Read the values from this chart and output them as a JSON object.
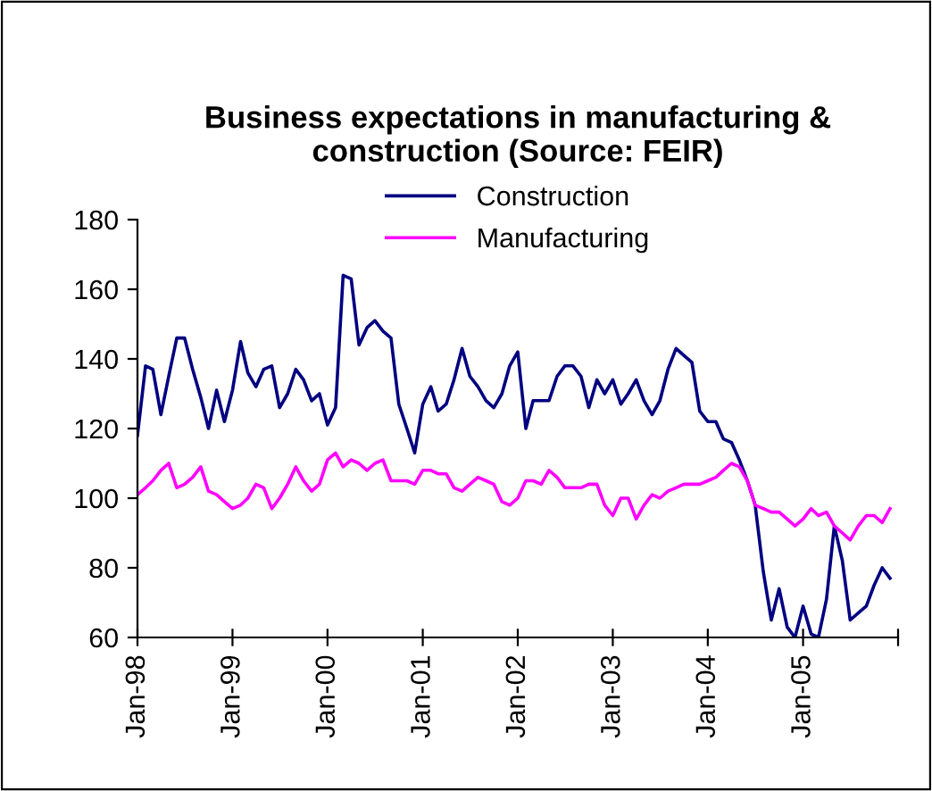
{
  "chart_data": {
    "type": "line",
    "title": "Business expectations in manufacturing &\nconstruction (Source: FEIR)",
    "x": [
      "1998-01",
      "1998-02",
      "1998-03",
      "1998-04",
      "1998-05",
      "1998-06",
      "1998-07",
      "1998-08",
      "1998-09",
      "1998-10",
      "1998-11",
      "1998-12",
      "1999-01",
      "1999-02",
      "1999-03",
      "1999-04",
      "1999-05",
      "1999-06",
      "1999-07",
      "1999-08",
      "1999-09",
      "1999-10",
      "1999-11",
      "1999-12",
      "2000-01",
      "2000-02",
      "2000-03",
      "2000-04",
      "2000-05",
      "2000-06",
      "2000-07",
      "2000-08",
      "2000-09",
      "2000-10",
      "2000-11",
      "2000-12",
      "2001-01",
      "2001-02",
      "2001-03",
      "2001-04",
      "2001-05",
      "2001-06",
      "2001-07",
      "2001-08",
      "2001-09",
      "2001-10",
      "2001-11",
      "2001-12",
      "2002-01",
      "2002-02",
      "2002-03",
      "2002-04",
      "2002-05",
      "2002-06",
      "2002-07",
      "2002-08",
      "2002-09",
      "2002-10",
      "2002-11",
      "2002-12",
      "2003-01",
      "2003-02",
      "2003-03",
      "2003-04",
      "2003-05",
      "2003-06",
      "2003-07",
      "2003-08",
      "2003-09",
      "2003-10",
      "2003-11",
      "2003-12",
      "2004-01",
      "2004-02",
      "2004-03",
      "2004-04",
      "2004-05",
      "2004-06",
      "2004-07",
      "2004-08",
      "2004-09",
      "2004-10",
      "2004-11",
      "2004-12",
      "2005-01",
      "2005-02",
      "2005-03",
      "2005-04",
      "2005-05",
      "2005-06",
      "2005-07",
      "2005-08",
      "2005-09",
      "2005-10",
      "2005-11",
      "2005-12"
    ],
    "series": [
      {
        "name": "Construction",
        "color": "#000080",
        "values": [
          118,
          138,
          137,
          124,
          135,
          146,
          146,
          137,
          129,
          120,
          131,
          122,
          131,
          145,
          136,
          132,
          137,
          138,
          126,
          130,
          137,
          134,
          128,
          130,
          121,
          126,
          164,
          163,
          144,
          149,
          151,
          148,
          146,
          127,
          120,
          113,
          127,
          132,
          125,
          127,
          134,
          143,
          135,
          132,
          128,
          126,
          130,
          138,
          142,
          120,
          128,
          128,
          128,
          135,
          138,
          138,
          135,
          126,
          134,
          130,
          134,
          127,
          130,
          134,
          128,
          124,
          128,
          137,
          143,
          141,
          139,
          125,
          122,
          122,
          117,
          116,
          111,
          105,
          98,
          79,
          65,
          74,
          63,
          60,
          69,
          61,
          60,
          71,
          92,
          82,
          65,
          67,
          69,
          75,
          80,
          77
        ]
      },
      {
        "name": "Manufacturing",
        "color": "#ff00ff",
        "values": [
          101,
          103,
          105,
          108,
          110,
          103,
          104,
          106,
          109,
          102,
          101,
          99,
          97,
          98,
          100,
          104,
          103,
          97,
          100,
          104,
          109,
          105,
          102,
          104,
          111,
          113,
          109,
          111,
          110,
          108,
          110,
          111,
          105,
          105,
          105,
          104,
          108,
          108,
          107,
          107,
          103,
          102,
          104,
          106,
          105,
          104,
          99,
          98,
          100,
          105,
          105,
          104,
          108,
          106,
          103,
          103,
          103,
          104,
          104,
          98,
          95,
          100,
          100,
          94,
          98,
          101,
          100,
          102,
          103,
          104,
          104,
          104,
          105,
          106,
          108,
          110,
          109,
          105,
          98,
          97,
          96,
          96,
          94,
          92,
          94,
          97,
          95,
          96,
          92,
          90,
          88,
          92,
          95,
          95,
          93,
          97
        ]
      }
    ],
    "xlim": [
      "1998-01",
      "2006-01"
    ],
    "xticks": [
      {
        "value": "1998-01",
        "label": "Jan-98"
      },
      {
        "value": "1999-01",
        "label": "Jan-99"
      },
      {
        "value": "2000-01",
        "label": "Jan-00"
      },
      {
        "value": "2001-01",
        "label": "Jan-01"
      },
      {
        "value": "2002-01",
        "label": "Jan-02"
      },
      {
        "value": "2003-01",
        "label": "Jan-03"
      },
      {
        "value": "2004-01",
        "label": "Jan-04"
      },
      {
        "value": "2005-01",
        "label": "Jan-05"
      },
      {
        "value": "2006-01",
        "label": null
      }
    ],
    "ylim": [
      60,
      180
    ],
    "yticks": [
      60,
      80,
      100,
      120,
      140,
      160,
      180
    ],
    "legend": "top",
    "grid": false,
    "marker": "none",
    "line_style": "solid"
  }
}
